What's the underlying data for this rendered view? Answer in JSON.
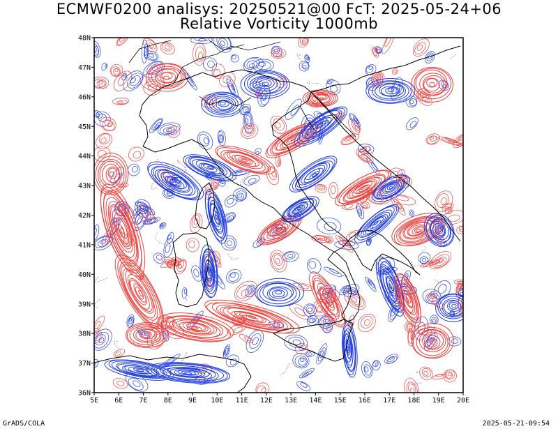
{
  "title": {
    "line1": "ECMWF0200 analisys: 20250521@00 FcT: 2025-05-24+06",
    "line2": "Relative Vorticity 1000mb"
  },
  "map": {
    "lon_range": [
      5,
      20
    ],
    "lat_range": [
      36,
      48
    ],
    "lon_ticks": [
      "5E",
      "6E",
      "7E",
      "8E",
      "9E",
      "10E",
      "11E",
      "12E",
      "13E",
      "14E",
      "15E",
      "16E",
      "17E",
      "18E",
      "19E",
      "20E"
    ],
    "lat_ticks": [
      "36N",
      "37N",
      "38N",
      "39N",
      "40N",
      "41N",
      "42N",
      "43N",
      "44N",
      "45N",
      "46N",
      "47N",
      "48N"
    ],
    "colors": {
      "positive": "#f0413c",
      "negative": "#2440e0",
      "zero": "#a070a0",
      "coast": "#000000"
    },
    "positive_label": "positive vorticity (red contours)",
    "negative_label": "negative vorticity (blue contours)"
  },
  "footer": {
    "left": "GrADS/COLA",
    "right": "2025-05-21-09:54"
  }
}
